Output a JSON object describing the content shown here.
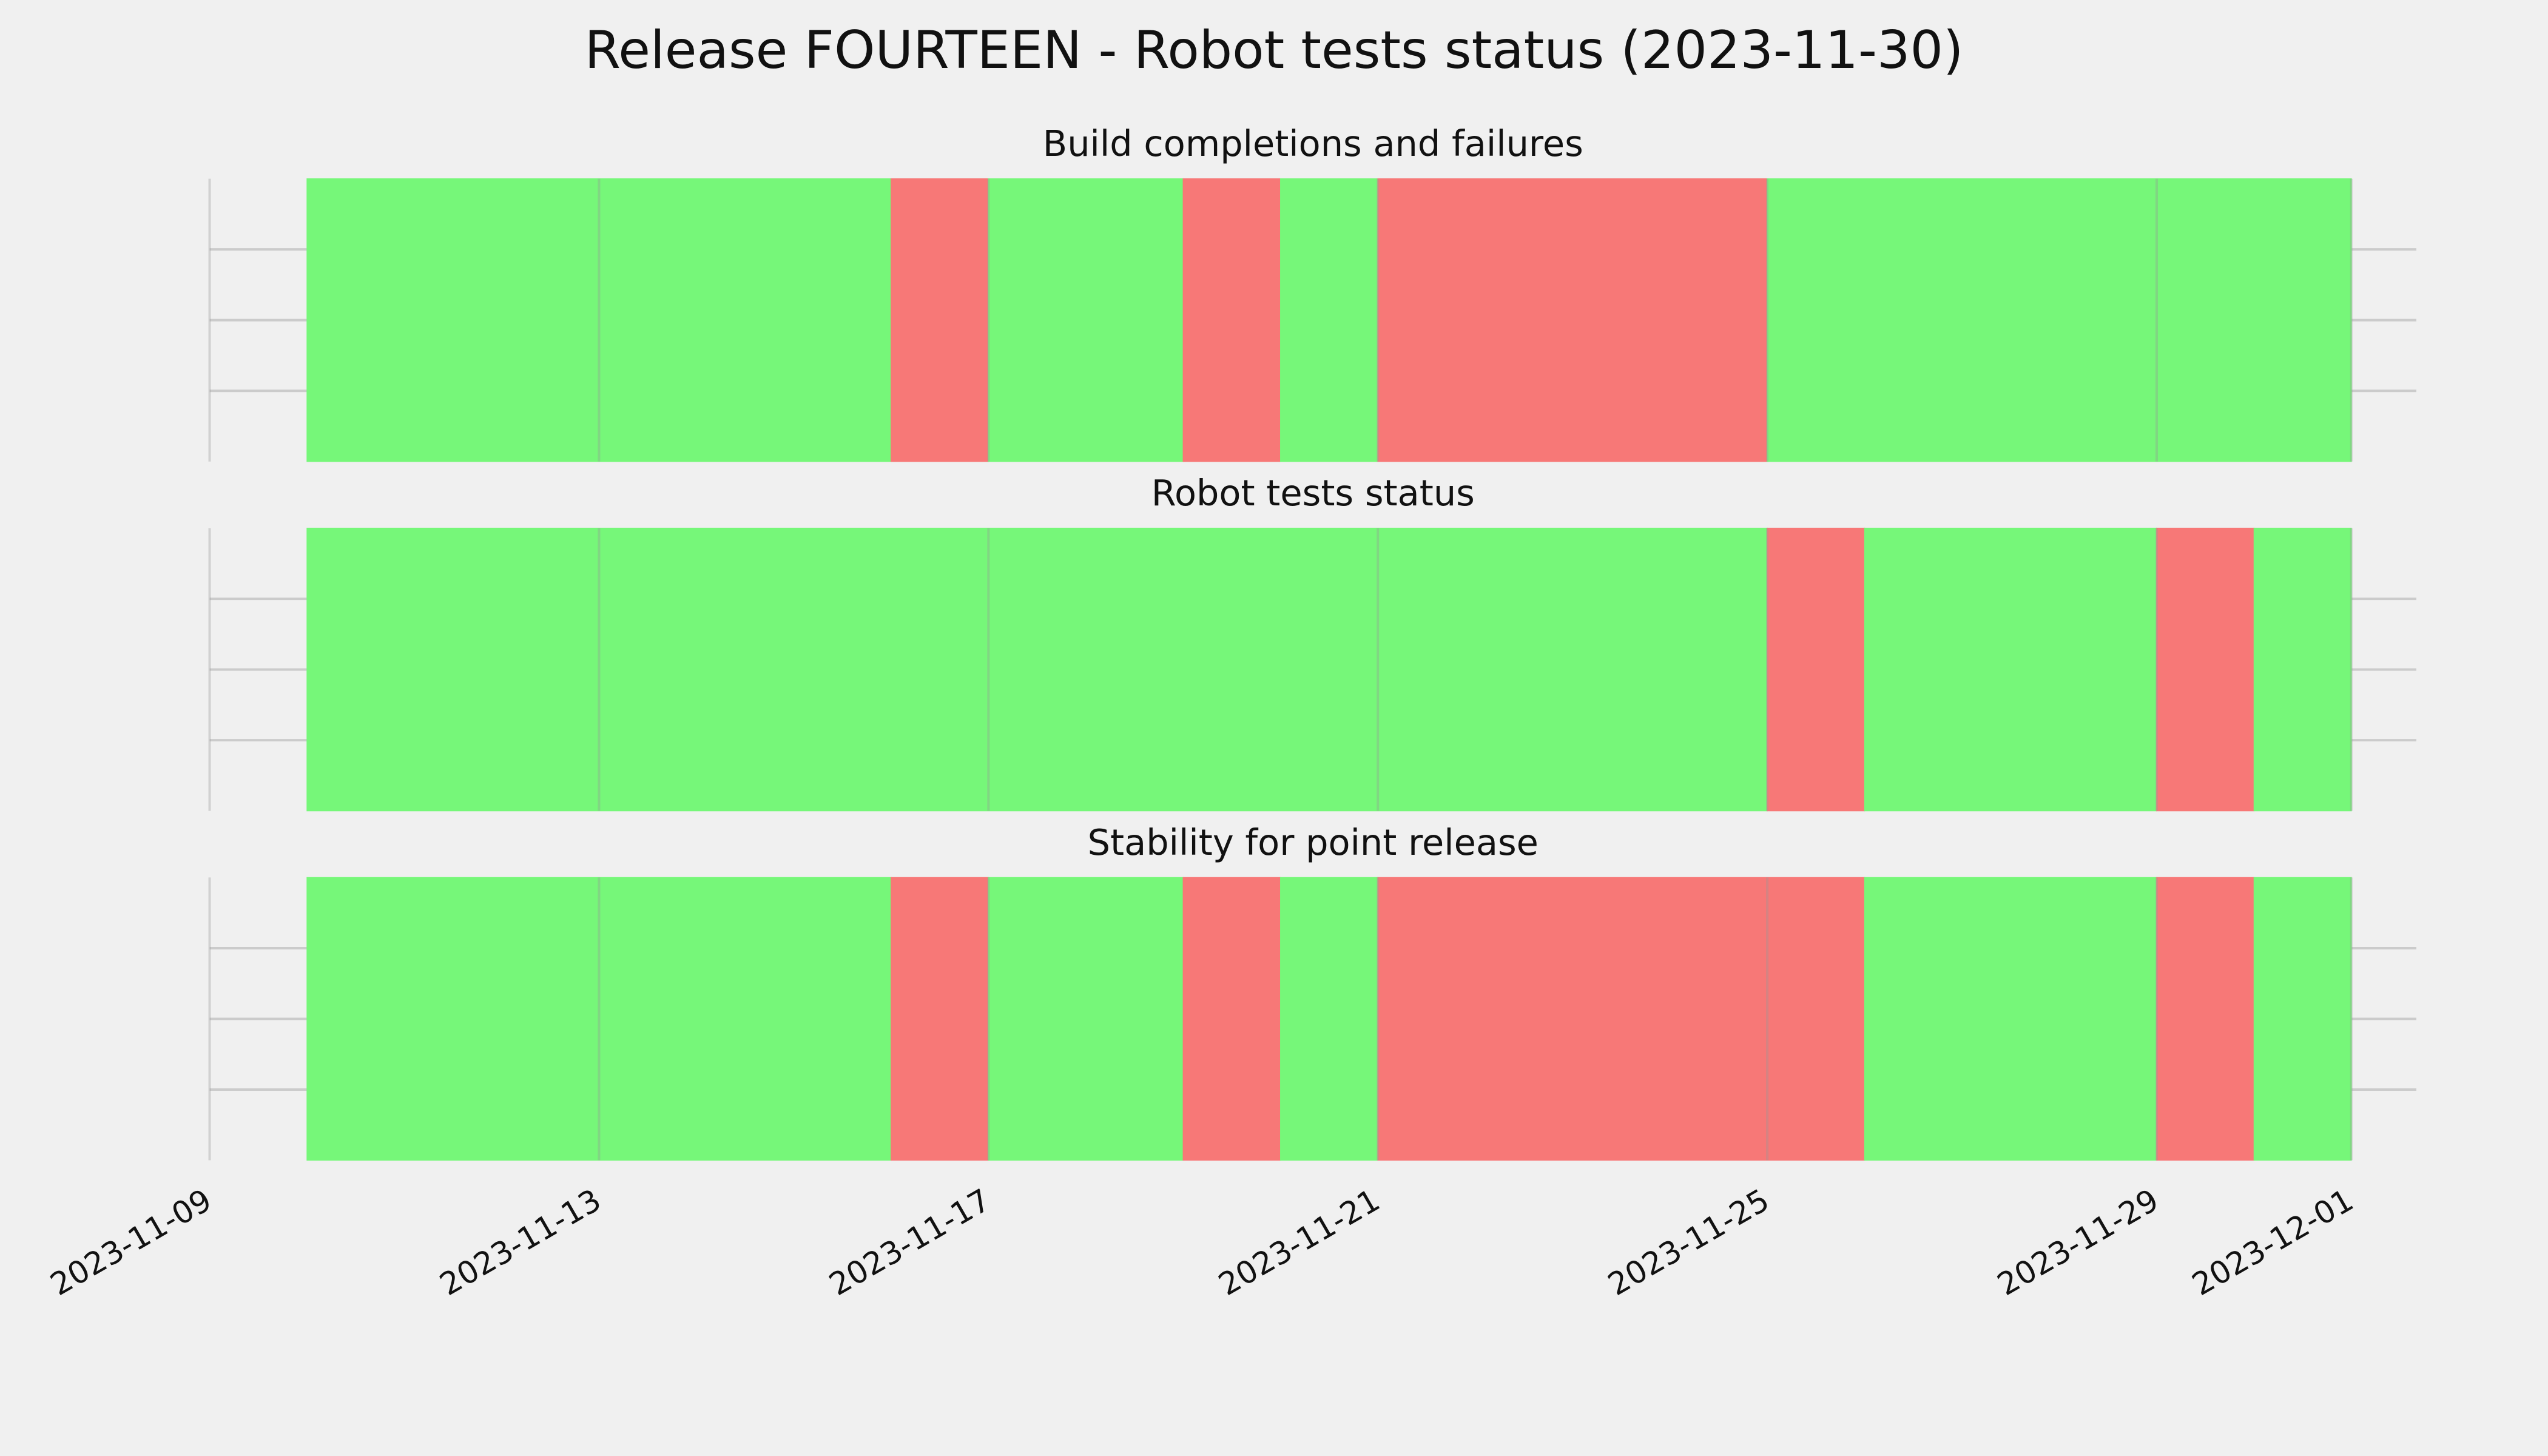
{
  "chart_data": {
    "type": "timeline",
    "title": "Release FOURTEEN - Robot tests status (2023-11-30)",
    "xlim": [
      "2023-11-09",
      "2023-12-01"
    ],
    "xticks": [
      "2023-11-09",
      "2023-11-13",
      "2023-11-17",
      "2023-11-21",
      "2023-11-25",
      "2023-11-29",
      "2023-12-01"
    ],
    "grid": true,
    "panels": [
      {
        "title": "Build completions and failures",
        "segments": [
          {
            "start": "2023-11-10",
            "end": "2023-11-16",
            "color": "#76f779"
          },
          {
            "start": "2023-11-16",
            "end": "2023-11-17",
            "color": "#f77877"
          },
          {
            "start": "2023-11-17",
            "end": "2023-11-19",
            "color": "#76f779"
          },
          {
            "start": "2023-11-19",
            "end": "2023-11-20",
            "color": "#f77877"
          },
          {
            "start": "2023-11-20",
            "end": "2023-11-21",
            "color": "#76f779"
          },
          {
            "start": "2023-11-21",
            "end": "2023-11-25",
            "color": "#f77877"
          },
          {
            "start": "2023-11-25",
            "end": "2023-12-01",
            "color": "#76f779"
          }
        ]
      },
      {
        "title": "Robot tests status",
        "segments": [
          {
            "start": "2023-11-10",
            "end": "2023-11-25",
            "color": "#76f779"
          },
          {
            "start": "2023-11-25",
            "end": "2023-11-26",
            "color": "#f77877"
          },
          {
            "start": "2023-11-26",
            "end": "2023-11-29",
            "color": "#76f779"
          },
          {
            "start": "2023-11-29",
            "end": "2023-11-30",
            "color": "#f77877"
          },
          {
            "start": "2023-11-30",
            "end": "2023-12-01",
            "color": "#76f779"
          }
        ]
      },
      {
        "title": "Stability for point release",
        "segments": [
          {
            "start": "2023-11-10",
            "end": "2023-11-16",
            "color": "#76f779"
          },
          {
            "start": "2023-11-16",
            "end": "2023-11-17",
            "color": "#f77877"
          },
          {
            "start": "2023-11-17",
            "end": "2023-11-19",
            "color": "#76f779"
          },
          {
            "start": "2023-11-19",
            "end": "2023-11-20",
            "color": "#f77877"
          },
          {
            "start": "2023-11-20",
            "end": "2023-11-21",
            "color": "#76f779"
          },
          {
            "start": "2023-11-21",
            "end": "2023-11-26",
            "color": "#f77877"
          },
          {
            "start": "2023-11-26",
            "end": "2023-11-29",
            "color": "#76f779"
          },
          {
            "start": "2023-11-29",
            "end": "2023-11-30",
            "color": "#f77877"
          },
          {
            "start": "2023-11-30",
            "end": "2023-12-01",
            "color": "#76f779"
          }
        ]
      }
    ]
  }
}
